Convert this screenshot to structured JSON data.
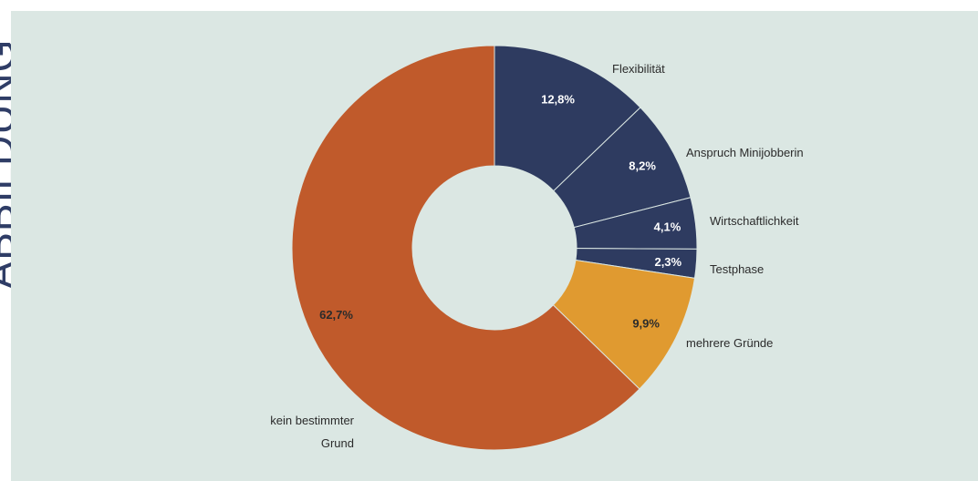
{
  "side_text": "ABBILDUNG",
  "chart_data": {
    "type": "pie",
    "style": "donut",
    "slices": [
      {
        "label": "Flexibilität",
        "value": 12.8,
        "display": "12,8%",
        "color": "#2e3b60",
        "label_color": "#ffffff"
      },
      {
        "label": "Anspruch Minijobberin",
        "value": 8.2,
        "display": "8,2%",
        "color": "#2e3b60",
        "label_color": "#ffffff"
      },
      {
        "label": "Wirtschaftlichkeit",
        "value": 4.1,
        "display": "4,1%",
        "color": "#2e3b60",
        "label_color": "#ffffff"
      },
      {
        "label": "Testphase",
        "value": 2.3,
        "display": "2,3%",
        "color": "#2e3b60",
        "label_color": "#ffffff"
      },
      {
        "label": "mehrere Gründe",
        "value": 9.9,
        "display": "9,9%",
        "color": "#e09a30",
        "label_color": "#2b2b2b"
      },
      {
        "label": "kein bestimmter Grund",
        "value": 62.7,
        "display": "62,7%",
        "color": "#c05a2b",
        "label_color": "#2b2b2b"
      }
    ],
    "background": "#dbe7e3"
  }
}
